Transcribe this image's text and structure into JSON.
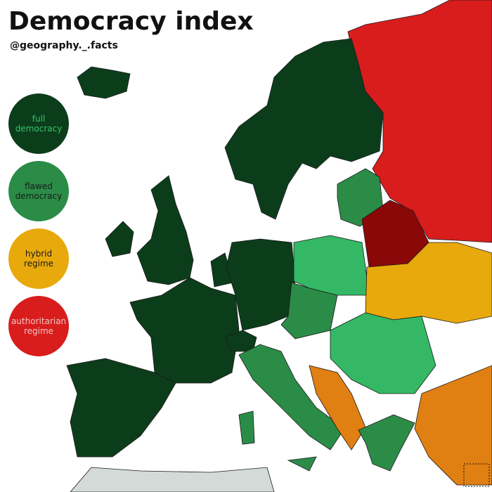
{
  "header": {
    "title": "Democracy index",
    "subtitle": "@geography._.facts"
  },
  "legend": [
    {
      "label": "full democracy",
      "color": "#0c3d1b"
    },
    {
      "label": "flawed democracy",
      "color": "#2b8c48"
    },
    {
      "label": "hybrid regime",
      "color": "#e8a90d"
    },
    {
      "label": "authoritarian regime",
      "color": "#d91d1d"
    }
  ]
}
